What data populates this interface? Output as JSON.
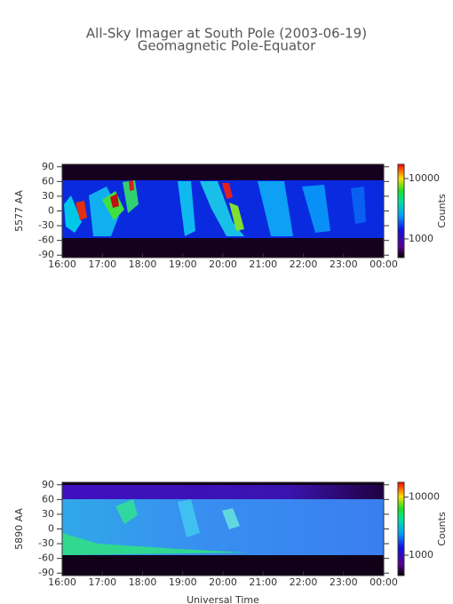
{
  "chart_data": [
    {
      "type": "heatmap",
      "title": "All-Sky Imager at South Pole (2003-06-19)",
      "subtitle": "Geomagnetic Pole-Equator",
      "ylabel": "5577 AA",
      "xlim": [
        16,
        24
      ],
      "xticks": [
        {
          "value": 16,
          "label": "16:00"
        },
        {
          "value": 17,
          "label": "17:00"
        },
        {
          "value": 18,
          "label": "18:00"
        },
        {
          "value": 19,
          "label": "19:00"
        },
        {
          "value": 20,
          "label": "20:00"
        },
        {
          "value": 21,
          "label": "21:00"
        },
        {
          "value": 22,
          "label": "22:00"
        },
        {
          "value": 23,
          "label": "23:00"
        },
        {
          "value": 24,
          "label": "00:00"
        }
      ],
      "ylim": [
        -95,
        95
      ],
      "yticks": [
        -90,
        -60,
        -30,
        0,
        30,
        60,
        90
      ],
      "colorbar_label": "Counts",
      "colorbar_log": true,
      "clim": [
        490,
        17200
      ],
      "cticks": [
        1000,
        10000
      ]
    },
    {
      "type": "heatmap",
      "ylabel": "5890 AA",
      "xlabel": "Universal Time",
      "xlim": [
        16,
        24
      ],
      "xticks": [
        {
          "value": 16,
          "label": "16:00"
        },
        {
          "value": 17,
          "label": "17:00"
        },
        {
          "value": 18,
          "label": "18:00"
        },
        {
          "value": 19,
          "label": "19:00"
        },
        {
          "value": 20,
          "label": "20:00"
        },
        {
          "value": 21,
          "label": "21:00"
        },
        {
          "value": 22,
          "label": "22:00"
        },
        {
          "value": 23,
          "label": "23:00"
        },
        {
          "value": 24,
          "label": "00:00"
        }
      ],
      "ylim": [
        -95,
        95
      ],
      "yticks": [
        -90,
        -60,
        -30,
        0,
        30,
        60,
        90
      ],
      "colorbar_label": "Counts",
      "colorbar_log": true,
      "clim": [
        445,
        18000
      ],
      "cticks": [
        1000,
        10000
      ]
    }
  ]
}
